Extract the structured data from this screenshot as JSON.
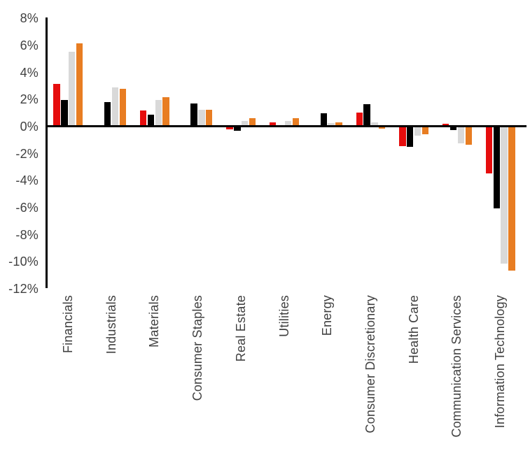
{
  "chart_data": {
    "type": "bar",
    "title": "",
    "categories": [
      "Financials",
      "Industrials",
      "Materials",
      "Consumer Staples",
      "Real Estate",
      "Utilities",
      "Energy",
      "Consumer Discretionary",
      "Health Care",
      "Communication Services",
      "Information Technology"
    ],
    "series": [
      {
        "name": "red",
        "color": "#e60d0d",
        "values": [
          3.1,
          0,
          1.15,
          0,
          -0.25,
          0.3,
          -0.1,
          1.0,
          -1.5,
          0.15,
          -3.5
        ]
      },
      {
        "name": "black",
        "color": "#000000",
        "values": [
          1.95,
          1.8,
          0.85,
          1.65,
          -0.35,
          0,
          0.95,
          1.6,
          -1.55,
          -0.3,
          -6.1
        ]
      },
      {
        "name": "gray",
        "color": "#d9d9d9",
        "values": [
          5.5,
          2.85,
          1.95,
          1.2,
          0.4,
          0.4,
          0.2,
          0.3,
          -0.7,
          -1.3,
          -10.2
        ]
      },
      {
        "name": "orange",
        "color": "#e87d22",
        "values": [
          6.1,
          2.75,
          2.15,
          1.2,
          0.6,
          0.6,
          0.3,
          -0.2,
          -0.6,
          -1.4,
          -10.7
        ]
      }
    ],
    "ylim": [
      -12,
      8
    ],
    "ytick_step": 2,
    "yticks": [
      "8%",
      "6%",
      "4%",
      "2%",
      "0%",
      "-2%",
      "-4%",
      "-6%",
      "-8%",
      "-10%",
      "-12%"
    ],
    "xlabel": "",
    "ylabel": "",
    "grid": false,
    "legend": "none",
    "axis_color": "#000000",
    "tick_label_color": "#404040",
    "background_color": "#ffffff"
  }
}
